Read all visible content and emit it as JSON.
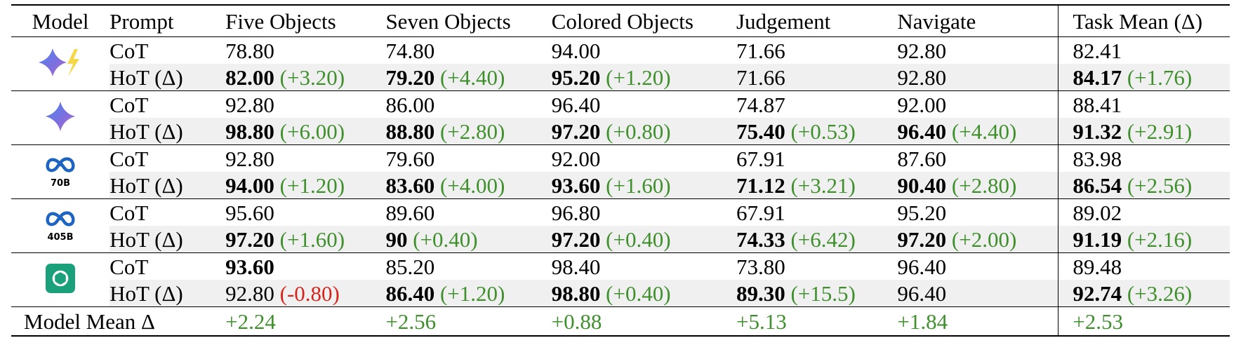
{
  "headers": [
    "Model",
    "Prompt",
    "Five Objects",
    "Seven Objects",
    "Colored Objects",
    "Judgement",
    "Navigate",
    "Task Mean (Δ)"
  ],
  "models": [
    {
      "icon": "gemini-flash-icon",
      "label": "",
      "rows": [
        {
          "prompt": "CoT",
          "cells": [
            {
              "value": "78.80",
              "bold": false,
              "delta": "",
              "sign": ""
            },
            {
              "value": "74.80",
              "bold": false,
              "delta": "",
              "sign": ""
            },
            {
              "value": "94.00",
              "bold": false,
              "delta": "",
              "sign": ""
            },
            {
              "value": "71.66",
              "bold": false,
              "delta": "",
              "sign": ""
            },
            {
              "value": "92.80",
              "bold": false,
              "delta": "",
              "sign": ""
            },
            {
              "value": "82.41",
              "bold": false,
              "delta": "",
              "sign": ""
            }
          ]
        },
        {
          "prompt": "HoT (Δ)",
          "cells": [
            {
              "value": "82.00",
              "bold": true,
              "delta": "(+3.20)",
              "sign": "pos"
            },
            {
              "value": "79.20",
              "bold": true,
              "delta": "(+4.40)",
              "sign": "pos"
            },
            {
              "value": "95.20",
              "bold": true,
              "delta": "(+1.20)",
              "sign": "pos"
            },
            {
              "value": "71.66",
              "bold": false,
              "delta": "",
              "sign": ""
            },
            {
              "value": "92.80",
              "bold": false,
              "delta": "",
              "sign": ""
            },
            {
              "value": "84.17",
              "bold": true,
              "delta": "(+1.76)",
              "sign": "pos"
            }
          ]
        }
      ]
    },
    {
      "icon": "gemini-icon",
      "label": "",
      "rows": [
        {
          "prompt": "CoT",
          "cells": [
            {
              "value": "92.80",
              "bold": false,
              "delta": "",
              "sign": ""
            },
            {
              "value": "86.00",
              "bold": false,
              "delta": "",
              "sign": ""
            },
            {
              "value": "96.40",
              "bold": false,
              "delta": "",
              "sign": ""
            },
            {
              "value": "74.87",
              "bold": false,
              "delta": "",
              "sign": ""
            },
            {
              "value": "92.00",
              "bold": false,
              "delta": "",
              "sign": ""
            },
            {
              "value": "88.41",
              "bold": false,
              "delta": "",
              "sign": ""
            }
          ]
        },
        {
          "prompt": "HoT (Δ)",
          "cells": [
            {
              "value": "98.80",
              "bold": true,
              "delta": "(+6.00)",
              "sign": "pos"
            },
            {
              "value": "88.80",
              "bold": true,
              "delta": "(+2.80)",
              "sign": "pos"
            },
            {
              "value": "97.20",
              "bold": true,
              "delta": "(+0.80)",
              "sign": "pos"
            },
            {
              "value": "75.40",
              "bold": true,
              "delta": "(+0.53)",
              "sign": "pos"
            },
            {
              "value": "96.40",
              "bold": true,
              "delta": "(+4.40)",
              "sign": "pos"
            },
            {
              "value": "91.32",
              "bold": true,
              "delta": "(+2.91)",
              "sign": "pos"
            }
          ]
        }
      ]
    },
    {
      "icon": "meta-icon",
      "label": "70B",
      "rows": [
        {
          "prompt": "CoT",
          "cells": [
            {
              "value": "92.80",
              "bold": false,
              "delta": "",
              "sign": ""
            },
            {
              "value": "79.60",
              "bold": false,
              "delta": "",
              "sign": ""
            },
            {
              "value": "92.00",
              "bold": false,
              "delta": "",
              "sign": ""
            },
            {
              "value": "67.91",
              "bold": false,
              "delta": "",
              "sign": ""
            },
            {
              "value": "87.60",
              "bold": false,
              "delta": "",
              "sign": ""
            },
            {
              "value": "83.98",
              "bold": false,
              "delta": "",
              "sign": ""
            }
          ]
        },
        {
          "prompt": "HoT (Δ)",
          "cells": [
            {
              "value": "94.00",
              "bold": true,
              "delta": "(+1.20)",
              "sign": "pos"
            },
            {
              "value": "83.60",
              "bold": true,
              "delta": "(+4.00)",
              "sign": "pos"
            },
            {
              "value": "93.60",
              "bold": true,
              "delta": "(+1.60)",
              "sign": "pos"
            },
            {
              "value": "71.12",
              "bold": true,
              "delta": "(+3.21)",
              "sign": "pos"
            },
            {
              "value": "90.40",
              "bold": true,
              "delta": "(+2.80)",
              "sign": "pos"
            },
            {
              "value": "86.54",
              "bold": true,
              "delta": "(+2.56)",
              "sign": "pos"
            }
          ]
        }
      ]
    },
    {
      "icon": "meta-icon",
      "label": "405B",
      "rows": [
        {
          "prompt": "CoT",
          "cells": [
            {
              "value": "95.60",
              "bold": false,
              "delta": "",
              "sign": ""
            },
            {
              "value": "89.60",
              "bold": false,
              "delta": "",
              "sign": ""
            },
            {
              "value": "96.80",
              "bold": false,
              "delta": "",
              "sign": ""
            },
            {
              "value": "67.91",
              "bold": false,
              "delta": "",
              "sign": ""
            },
            {
              "value": "95.20",
              "bold": false,
              "delta": "",
              "sign": ""
            },
            {
              "value": "89.02",
              "bold": false,
              "delta": "",
              "sign": ""
            }
          ]
        },
        {
          "prompt": "HoT (Δ)",
          "cells": [
            {
              "value": "97.20",
              "bold": true,
              "delta": "(+1.60)",
              "sign": "pos"
            },
            {
              "value": "90",
              "bold": true,
              "delta": "(+0.40)",
              "sign": "pos"
            },
            {
              "value": "97.20",
              "bold": true,
              "delta": "(+0.40)",
              "sign": "pos"
            },
            {
              "value": "74.33",
              "bold": true,
              "delta": "(+6.42)",
              "sign": "pos"
            },
            {
              "value": "97.20",
              "bold": true,
              "delta": "(+2.00)",
              "sign": "pos"
            },
            {
              "value": "91.19",
              "bold": true,
              "delta": "(+2.16)",
              "sign": "pos"
            }
          ]
        }
      ]
    },
    {
      "icon": "openai-icon",
      "label": "",
      "rows": [
        {
          "prompt": "CoT",
          "cells": [
            {
              "value": "93.60",
              "bold": true,
              "delta": "",
              "sign": ""
            },
            {
              "value": "85.20",
              "bold": false,
              "delta": "",
              "sign": ""
            },
            {
              "value": "98.40",
              "bold": false,
              "delta": "",
              "sign": ""
            },
            {
              "value": "73.80",
              "bold": false,
              "delta": "",
              "sign": ""
            },
            {
              "value": "96.40",
              "bold": false,
              "delta": "",
              "sign": ""
            },
            {
              "value": "89.48",
              "bold": false,
              "delta": "",
              "sign": ""
            }
          ]
        },
        {
          "prompt": "HoT (Δ)",
          "cells": [
            {
              "value": "92.80",
              "bold": false,
              "delta": "(-0.80)",
              "sign": "neg"
            },
            {
              "value": "86.40",
              "bold": true,
              "delta": "(+1.20)",
              "sign": "pos"
            },
            {
              "value": "98.80",
              "bold": true,
              "delta": "(+0.40)",
              "sign": "pos"
            },
            {
              "value": "89.30",
              "bold": true,
              "delta": "(+15.5)",
              "sign": "pos"
            },
            {
              "value": "96.40",
              "bold": false,
              "delta": "",
              "sign": ""
            },
            {
              "value": "92.74",
              "bold": true,
              "delta": "(+3.26)",
              "sign": "pos"
            }
          ]
        }
      ]
    }
  ],
  "footer": {
    "label": "Model Mean Δ",
    "values": [
      "+2.24",
      "+2.56",
      "+0.88",
      "+5.13",
      "+1.84",
      "+2.53"
    ]
  },
  "colors": {
    "positive": "#3f8f2d",
    "negative": "#d6251c",
    "shade": "#f0f0f0",
    "meta_blue": "#1d65c1",
    "openai_green": "#1aa17c"
  }
}
